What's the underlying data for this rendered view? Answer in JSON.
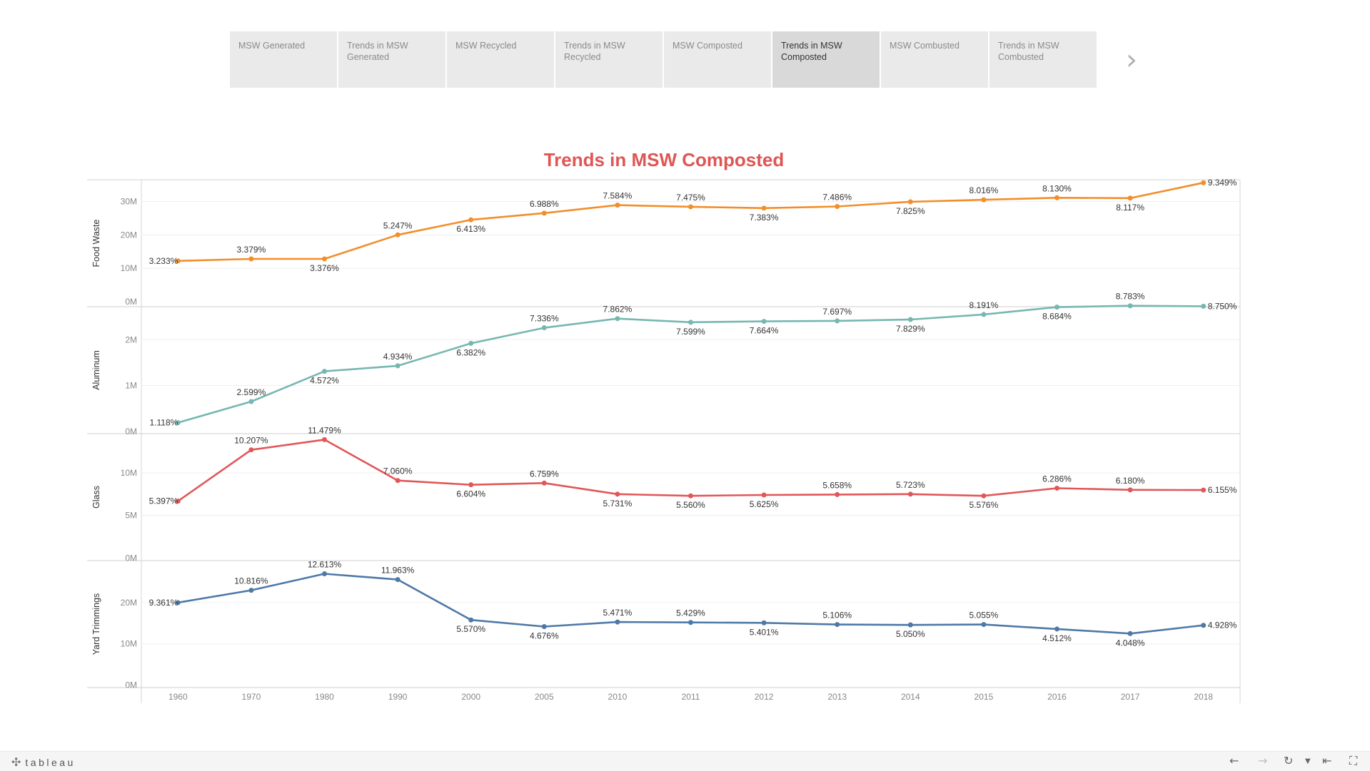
{
  "story_tabs": [
    {
      "label": "MSW Generated",
      "active": false
    },
    {
      "label": "Trends in MSW Generated",
      "active": false
    },
    {
      "label": "MSW Recycled",
      "active": false
    },
    {
      "label": "Trends in MSW Recycled",
      "active": false
    },
    {
      "label": "MSW Composted",
      "active": false
    },
    {
      "label": "Trends in MSW Composted",
      "active": true
    },
    {
      "label": "MSW Combusted",
      "active": false
    },
    {
      "label": "Trends in MSW Combusted",
      "active": false
    }
  ],
  "nav_icons": {
    "prev": "chevron-left-icon",
    "next": "chevron-right-icon"
  },
  "brand": "tableau",
  "toolbar_icons": [
    "undo-icon",
    "redo-icon",
    "revert-icon",
    "revert-dropdown-icon",
    "first-page-icon",
    "fullscreen-icon"
  ],
  "chart_data": {
    "type": "line",
    "title": "Trends in MSW Composted",
    "title_color": "#e05555",
    "categories": [
      "1960",
      "1970",
      "1980",
      "1990",
      "2000",
      "2005",
      "2010",
      "2011",
      "2012",
      "2013",
      "2014",
      "2015",
      "2016",
      "2017",
      "2018"
    ],
    "grid": true,
    "panels": [
      {
        "name": "Food Waste",
        "color": "#f28e2b",
        "ticks": [
          {
            "value": 0,
            "label": "0M"
          },
          {
            "value": 10,
            "label": "10M"
          },
          {
            "value": 20,
            "label": "20M"
          },
          {
            "value": 30,
            "label": "30M"
          }
        ],
        "ylim": [
          -1.5,
          36.5
        ],
        "values": [
          12.2,
          12.8,
          12.8,
          20.0,
          24.5,
          26.5,
          28.9,
          28.4,
          28.0,
          28.5,
          29.9,
          30.5,
          31.1,
          31.0,
          35.6
        ],
        "labels": [
          "3.233%",
          "3.379%",
          "3.376%",
          "5.247%",
          "6.413%",
          "6.988%",
          "7.584%",
          "7.475%",
          "7.383%",
          "7.486%",
          "7.825%",
          "8.016%",
          "8.130%",
          "8.117%",
          "9.349%"
        ]
      },
      {
        "name": "Aluminum",
        "color": "#76b7b2",
        "ticks": [
          {
            "value": 0,
            "label": "0M"
          },
          {
            "value": 1,
            "label": "1M"
          },
          {
            "value": 2,
            "label": "2M"
          }
        ],
        "ylim": [
          -0.05,
          2.72
        ],
        "values": [
          0.19,
          0.65,
          1.31,
          1.43,
          1.92,
          2.26,
          2.46,
          2.38,
          2.4,
          2.41,
          2.44,
          2.55,
          2.71,
          2.74,
          2.73
        ],
        "labels": [
          "1.118%",
          "2.599%",
          "4.572%",
          "4.934%",
          "6.382%",
          "7.336%",
          "7.862%",
          "7.599%",
          "7.664%",
          "7.697%",
          "7.829%",
          "8.191%",
          "8.684%",
          "8.783%",
          "8.750%"
        ]
      },
      {
        "name": "Glass",
        "color": "#e15759",
        "ticks": [
          {
            "value": 0,
            "label": "0M"
          },
          {
            "value": 5,
            "label": "5M"
          },
          {
            "value": 10,
            "label": "10M"
          }
        ],
        "ylim": [
          -0.3,
          14.6
        ],
        "values": [
          6.68,
          12.7,
          13.9,
          9.1,
          8.6,
          8.8,
          7.5,
          7.3,
          7.4,
          7.45,
          7.5,
          7.3,
          8.2,
          8.0,
          7.98
        ],
        "labels": [
          "5.397%",
          "10.207%",
          "11.479%",
          "7.060%",
          "6.604%",
          "6.759%",
          "5.731%",
          "5.560%",
          "5.625%",
          "5.658%",
          "5.723%",
          "5.576%",
          "6.286%",
          "6.180%",
          "6.155%"
        ]
      },
      {
        "name": "Yard Trimmings",
        "color": "#4e79a7",
        "ticks": [
          {
            "value": 0,
            "label": "0M"
          },
          {
            "value": 10,
            "label": "10M"
          },
          {
            "value": 20,
            "label": "20M"
          }
        ],
        "ylim": [
          -0.6,
          30.2
        ],
        "values": [
          20.0,
          23.0,
          27.0,
          25.6,
          15.8,
          14.2,
          15.3,
          15.2,
          15.1,
          14.7,
          14.6,
          14.7,
          13.6,
          12.5,
          14.5
        ],
        "labels": [
          "9.361%",
          "10.816%",
          "12.613%",
          "11.963%",
          "5.570%",
          "4.676%",
          "5.471%",
          "5.429%",
          "5.401%",
          "5.106%",
          "5.050%",
          "5.055%",
          "4.512%",
          "4.048%",
          "4.928%"
        ]
      }
    ]
  }
}
